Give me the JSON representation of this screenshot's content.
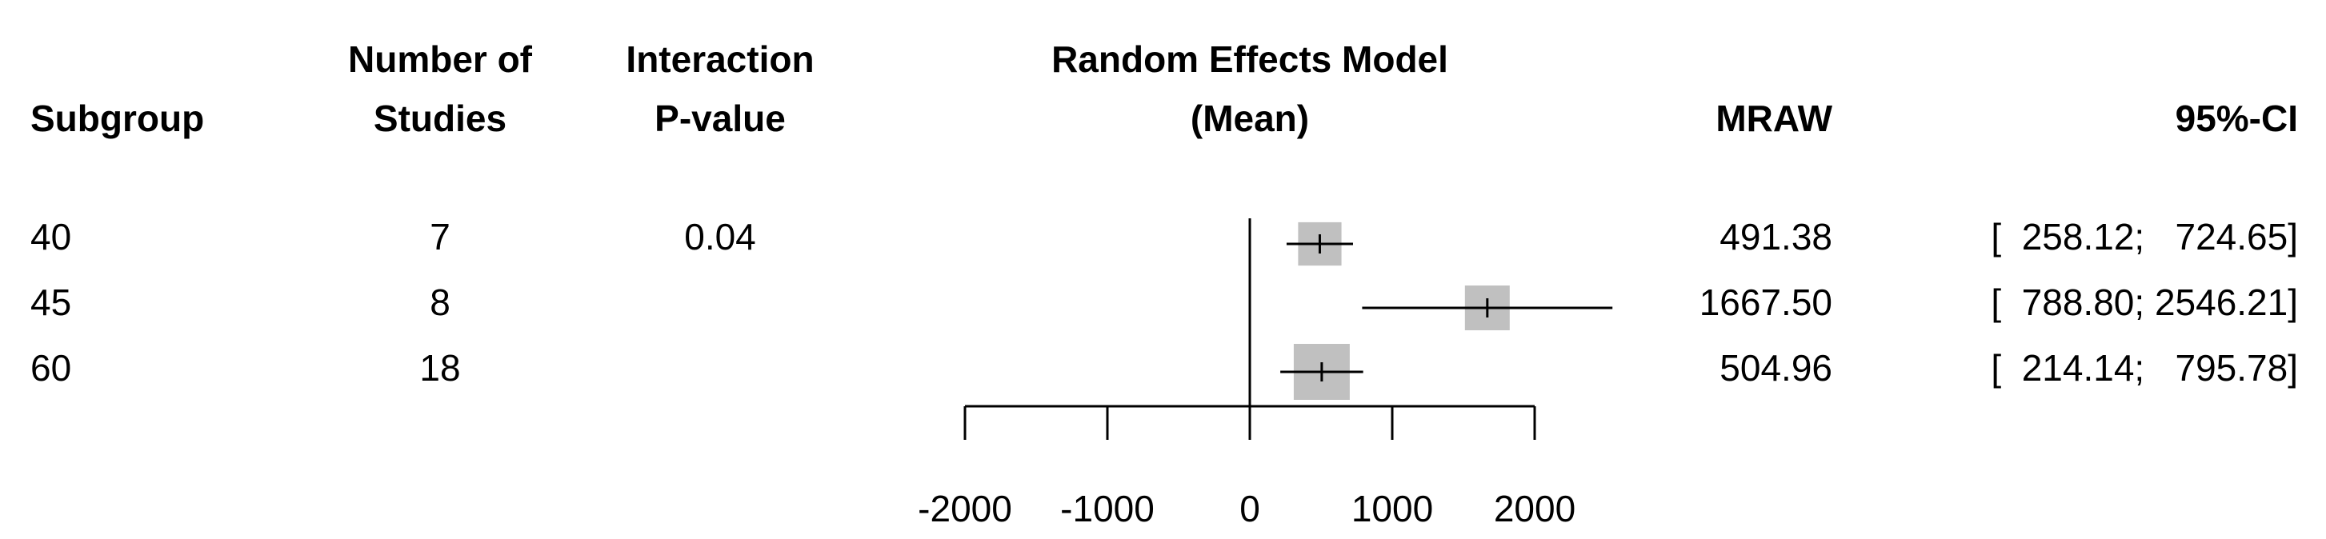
{
  "headers": {
    "subgroup": "Subgroup",
    "num_studies_line1": "Number of",
    "num_studies_line2": "Studies",
    "pvalue_line1": "Interaction",
    "pvalue_line2": "P-value",
    "model_line1": "Random Effects Model",
    "model_line2": "(Mean)",
    "mraw": "MRAW",
    "ci": "95%-CI"
  },
  "rows": [
    {
      "subgroup": "40",
      "studies": "7",
      "pvalue": "0.04",
      "mraw": "491.38",
      "ci": "[  258.12;   724.65]"
    },
    {
      "subgroup": "45",
      "studies": "8",
      "pvalue": "",
      "mraw": "1667.50",
      "ci": "[  788.80; 2546.21]"
    },
    {
      "subgroup": "60",
      "studies": "18",
      "pvalue": "",
      "mraw": "504.96",
      "ci": "[  214.14;   795.78]"
    }
  ],
  "chart_data": {
    "type": "forest",
    "reference_line": 0,
    "xlim": [
      -2000,
      2000
    ],
    "x_ticks": [
      -2000,
      -1000,
      0,
      1000,
      2000
    ],
    "x_tick_labels": [
      "-2000",
      "-1000",
      "0",
      "1000",
      "2000"
    ],
    "series": [
      {
        "subgroup": "40",
        "estimate": 491.38,
        "lower": 258.12,
        "upper": 724.65,
        "weight": 7
      },
      {
        "subgroup": "45",
        "estimate": 1667.5,
        "lower": 788.8,
        "upper": 2546.21,
        "weight": 8
      },
      {
        "subgroup": "60",
        "estimate": 504.96,
        "lower": 214.14,
        "upper": 795.78,
        "weight": 18
      }
    ],
    "colors": {
      "box": "#c0c0c0",
      "line": "#000000"
    }
  }
}
